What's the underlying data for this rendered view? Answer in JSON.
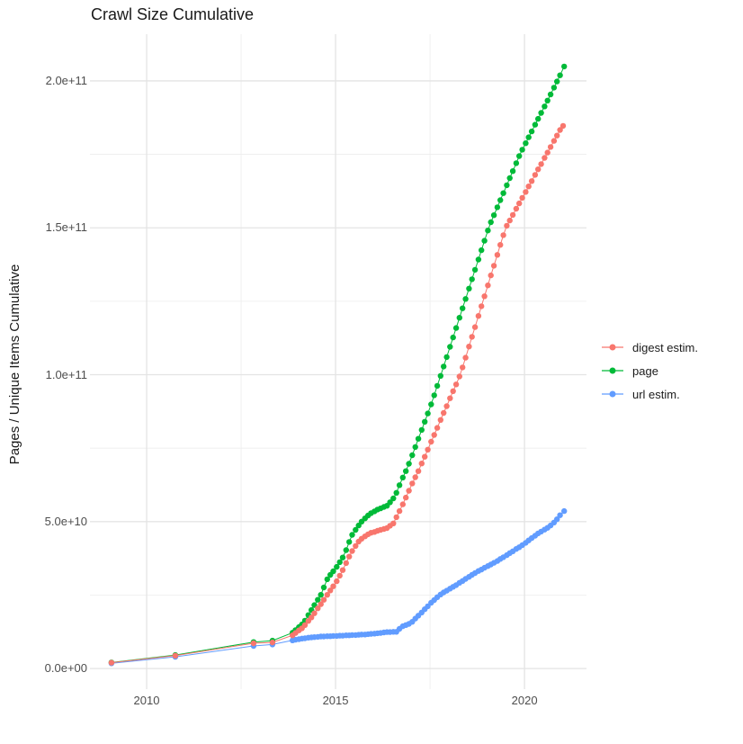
{
  "chart_data": {
    "type": "line",
    "title": "Crawl Size Cumulative",
    "xlabel": "",
    "ylabel": "Pages / Unique Items Cumulative",
    "legend_position": "right",
    "background_color": "#FFFFFF",
    "grid_major_color": "#E4E4E4",
    "grid_minor_color": "#EDEDED",
    "tick_text_color": "#4D4D4D",
    "value_unit": "1e9 items",
    "xlim": [
      2008.5,
      2021.64
    ],
    "ylim_e9": [
      -7,
      215.9
    ],
    "x_ticks": [
      {
        "label": "2010",
        "value": 2010
      },
      {
        "label": "2015",
        "value": 2015
      },
      {
        "label": "2020",
        "value": 2020
      }
    ],
    "y_ticks": [
      {
        "label": "0.0e+00",
        "value": 0
      },
      {
        "label": "5.0e+10",
        "value": 50
      },
      {
        "label": "1.0e+11",
        "value": 100
      },
      {
        "label": "1.5e+11",
        "value": 150
      },
      {
        "label": "2.0e+11",
        "value": 200
      }
    ],
    "x_minor": [
      2012.5,
      2017.5
    ],
    "y_minor": [
      25,
      75,
      125,
      175
    ],
    "series": [
      {
        "name": "digest estim.",
        "color": "#F8766D",
        "points": [
          [
            2009.07,
            2.0
          ],
          [
            2010.76,
            4.4
          ],
          [
            2012.83,
            8.6
          ],
          [
            2013.33,
            8.9
          ],
          [
            2013.86,
            11.3
          ],
          [
            2013.94,
            12.1
          ],
          [
            2014.03,
            13.0
          ],
          [
            2014.11,
            13.7
          ],
          [
            2014.19,
            14.8
          ],
          [
            2014.28,
            16.2
          ],
          [
            2014.36,
            17.4
          ],
          [
            2014.44,
            18.8
          ],
          [
            2014.53,
            20.5
          ],
          [
            2014.61,
            21.9
          ],
          [
            2014.69,
            23.4
          ],
          [
            2014.78,
            25.1
          ],
          [
            2014.86,
            26.6
          ],
          [
            2014.94,
            28.0
          ],
          [
            2015.03,
            29.7
          ],
          [
            2015.11,
            31.6
          ],
          [
            2015.19,
            33.5
          ],
          [
            2015.28,
            35.9
          ],
          [
            2015.36,
            38.1
          ],
          [
            2015.44,
            40.0
          ],
          [
            2015.53,
            41.7
          ],
          [
            2015.61,
            43.2
          ],
          [
            2015.69,
            44.2
          ],
          [
            2015.78,
            45.0
          ],
          [
            2015.86,
            45.7
          ],
          [
            2015.94,
            46.2
          ],
          [
            2016.03,
            46.5
          ],
          [
            2016.11,
            46.9
          ],
          [
            2016.19,
            47.2
          ],
          [
            2016.28,
            47.5
          ],
          [
            2016.36,
            47.8
          ],
          [
            2016.44,
            48.6
          ],
          [
            2016.53,
            49.4
          ],
          [
            2016.61,
            51.5
          ],
          [
            2016.69,
            53.6
          ],
          [
            2016.78,
            55.9
          ],
          [
            2016.86,
            58.2
          ],
          [
            2016.94,
            60.5
          ],
          [
            2017.03,
            63.0
          ],
          [
            2017.11,
            65.1
          ],
          [
            2017.19,
            67.2
          ],
          [
            2017.28,
            69.8
          ],
          [
            2017.36,
            72.1
          ],
          [
            2017.44,
            74.5
          ],
          [
            2017.53,
            77.2
          ],
          [
            2017.61,
            79.5
          ],
          [
            2017.69,
            81.9
          ],
          [
            2017.78,
            84.6
          ],
          [
            2017.86,
            87.0
          ],
          [
            2017.94,
            89.3
          ],
          [
            2018.03,
            92.0
          ],
          [
            2018.11,
            94.4
          ],
          [
            2018.19,
            96.7
          ],
          [
            2018.28,
            99.4
          ],
          [
            2018.36,
            102.5
          ],
          [
            2018.44,
            105.8
          ],
          [
            2018.53,
            109.6
          ],
          [
            2018.61,
            112.9
          ],
          [
            2018.69,
            116.2
          ],
          [
            2018.78,
            120.0
          ],
          [
            2018.86,
            123.3
          ],
          [
            2018.94,
            126.7
          ],
          [
            2019.03,
            130.4
          ],
          [
            2019.11,
            133.8
          ],
          [
            2019.19,
            137.1
          ],
          [
            2019.28,
            140.8
          ],
          [
            2019.36,
            144.2
          ],
          [
            2019.44,
            147.5
          ],
          [
            2019.53,
            150.7
          ],
          [
            2019.61,
            152.5
          ],
          [
            2019.69,
            154.4
          ],
          [
            2019.78,
            156.5
          ],
          [
            2019.86,
            158.3
          ],
          [
            2019.94,
            160.2
          ],
          [
            2020.03,
            162.2
          ],
          [
            2020.11,
            164.1
          ],
          [
            2020.19,
            165.9
          ],
          [
            2020.28,
            168.0
          ],
          [
            2020.36,
            169.9
          ],
          [
            2020.44,
            171.7
          ],
          [
            2020.53,
            173.8
          ],
          [
            2020.61,
            175.6
          ],
          [
            2020.69,
            177.5
          ],
          [
            2020.78,
            179.6
          ],
          [
            2020.86,
            181.4
          ],
          [
            2020.94,
            183.3
          ],
          [
            2021.02,
            184.7
          ]
        ]
      },
      {
        "name": "page",
        "color": "#00BA38",
        "points": [
          [
            2009.07,
            2.1
          ],
          [
            2010.76,
            4.6
          ],
          [
            2012.83,
            9.0
          ],
          [
            2013.33,
            9.5
          ],
          [
            2013.86,
            12.2
          ],
          [
            2013.94,
            13.1
          ],
          [
            2014.03,
            14.1
          ],
          [
            2014.11,
            15.0
          ],
          [
            2014.19,
            16.3
          ],
          [
            2014.28,
            18.2
          ],
          [
            2014.36,
            19.9
          ],
          [
            2014.44,
            21.6
          ],
          [
            2014.53,
            23.4
          ],
          [
            2014.61,
            25.1
          ],
          [
            2014.69,
            27.6
          ],
          [
            2014.78,
            30.4
          ],
          [
            2014.86,
            31.9
          ],
          [
            2014.94,
            33.1
          ],
          [
            2015.03,
            34.6
          ],
          [
            2015.11,
            36.2
          ],
          [
            2015.19,
            37.8
          ],
          [
            2015.28,
            40.3
          ],
          [
            2015.36,
            43.1
          ],
          [
            2015.44,
            45.5
          ],
          [
            2015.53,
            47.2
          ],
          [
            2015.61,
            48.7
          ],
          [
            2015.69,
            50.0
          ],
          [
            2015.78,
            51.1
          ],
          [
            2015.86,
            52.1
          ],
          [
            2015.94,
            52.9
          ],
          [
            2016.03,
            53.5
          ],
          [
            2016.11,
            54.1
          ],
          [
            2016.19,
            54.5
          ],
          [
            2016.28,
            55.0
          ],
          [
            2016.36,
            55.4
          ],
          [
            2016.44,
            56.6
          ],
          [
            2016.53,
            57.9
          ],
          [
            2016.61,
            59.8
          ],
          [
            2016.69,
            62.4
          ],
          [
            2016.78,
            65.0
          ],
          [
            2016.86,
            67.2
          ],
          [
            2016.94,
            69.7
          ],
          [
            2017.03,
            72.6
          ],
          [
            2017.11,
            75.4
          ],
          [
            2017.19,
            78.2
          ],
          [
            2017.28,
            81.2
          ],
          [
            2017.36,
            84.0
          ],
          [
            2017.44,
            86.8
          ],
          [
            2017.53,
            89.9
          ],
          [
            2017.61,
            93.0
          ],
          [
            2017.69,
            96.2
          ],
          [
            2017.78,
            99.6
          ],
          [
            2017.86,
            102.8
          ],
          [
            2017.94,
            106.0
          ],
          [
            2018.03,
            109.5
          ],
          [
            2018.11,
            112.7
          ],
          [
            2018.19,
            115.9
          ],
          [
            2018.28,
            119.4
          ],
          [
            2018.36,
            122.6
          ],
          [
            2018.44,
            125.8
          ],
          [
            2018.53,
            129.3
          ],
          [
            2018.61,
            132.5
          ],
          [
            2018.69,
            135.7
          ],
          [
            2018.78,
            139.2
          ],
          [
            2018.86,
            142.4
          ],
          [
            2018.94,
            145.6
          ],
          [
            2019.03,
            149.1
          ],
          [
            2019.11,
            151.9
          ],
          [
            2019.19,
            154.3
          ],
          [
            2019.28,
            157.0
          ],
          [
            2019.36,
            159.4
          ],
          [
            2019.44,
            161.8
          ],
          [
            2019.53,
            164.5
          ],
          [
            2019.61,
            166.9
          ],
          [
            2019.69,
            169.3
          ],
          [
            2019.78,
            172.0
          ],
          [
            2019.86,
            174.4
          ],
          [
            2019.94,
            176.6
          ],
          [
            2020.03,
            178.8
          ],
          [
            2020.11,
            180.8
          ],
          [
            2020.19,
            182.8
          ],
          [
            2020.28,
            185.1
          ],
          [
            2020.36,
            187.1
          ],
          [
            2020.44,
            189.1
          ],
          [
            2020.53,
            191.3
          ],
          [
            2020.61,
            193.3
          ],
          [
            2020.69,
            195.4
          ],
          [
            2020.78,
            197.7
          ],
          [
            2020.86,
            199.8
          ],
          [
            2020.94,
            201.9
          ],
          [
            2021.05,
            204.9
          ]
        ]
      },
      {
        "name": "url estim.",
        "color": "#619CFF",
        "points": [
          [
            2009.07,
            1.8
          ],
          [
            2010.76,
            4.0
          ],
          [
            2012.83,
            7.7
          ],
          [
            2013.33,
            8.2
          ],
          [
            2013.86,
            9.6
          ],
          [
            2013.94,
            9.8
          ],
          [
            2014.03,
            10.0
          ],
          [
            2014.11,
            10.2
          ],
          [
            2014.19,
            10.3
          ],
          [
            2014.28,
            10.5
          ],
          [
            2014.36,
            10.6
          ],
          [
            2014.44,
            10.7
          ],
          [
            2014.53,
            10.8
          ],
          [
            2014.61,
            10.9
          ],
          [
            2014.69,
            10.9
          ],
          [
            2014.78,
            11.0
          ],
          [
            2014.86,
            11.0
          ],
          [
            2014.94,
            11.1
          ],
          [
            2015.03,
            11.1
          ],
          [
            2015.11,
            11.2
          ],
          [
            2015.19,
            11.2
          ],
          [
            2015.28,
            11.3
          ],
          [
            2015.36,
            11.3
          ],
          [
            2015.44,
            11.4
          ],
          [
            2015.53,
            11.4
          ],
          [
            2015.61,
            11.5
          ],
          [
            2015.69,
            11.6
          ],
          [
            2015.78,
            11.6
          ],
          [
            2015.86,
            11.7
          ],
          [
            2015.94,
            11.8
          ],
          [
            2016.03,
            11.9
          ],
          [
            2016.11,
            12.0
          ],
          [
            2016.19,
            12.1
          ],
          [
            2016.28,
            12.3
          ],
          [
            2016.36,
            12.4
          ],
          [
            2016.44,
            12.4
          ],
          [
            2016.53,
            12.5
          ],
          [
            2016.61,
            12.5
          ],
          [
            2016.69,
            13.5
          ],
          [
            2016.78,
            14.4
          ],
          [
            2016.86,
            14.8
          ],
          [
            2016.94,
            15.2
          ],
          [
            2017.03,
            15.9
          ],
          [
            2017.11,
            17.0
          ],
          [
            2017.19,
            18.0
          ],
          [
            2017.28,
            19.1
          ],
          [
            2017.36,
            20.2
          ],
          [
            2017.44,
            21.2
          ],
          [
            2017.53,
            22.4
          ],
          [
            2017.61,
            23.3
          ],
          [
            2017.69,
            24.3
          ],
          [
            2017.78,
            25.2
          ],
          [
            2017.86,
            25.9
          ],
          [
            2017.94,
            26.5
          ],
          [
            2018.03,
            27.2
          ],
          [
            2018.11,
            27.8
          ],
          [
            2018.19,
            28.4
          ],
          [
            2018.28,
            29.2
          ],
          [
            2018.36,
            29.8
          ],
          [
            2018.44,
            30.5
          ],
          [
            2018.53,
            31.2
          ],
          [
            2018.61,
            31.9
          ],
          [
            2018.69,
            32.5
          ],
          [
            2018.78,
            33.2
          ],
          [
            2018.86,
            33.7
          ],
          [
            2018.94,
            34.3
          ],
          [
            2019.03,
            34.9
          ],
          [
            2019.11,
            35.4
          ],
          [
            2019.19,
            36.0
          ],
          [
            2019.28,
            36.6
          ],
          [
            2019.36,
            37.3
          ],
          [
            2019.44,
            37.9
          ],
          [
            2019.53,
            38.6
          ],
          [
            2019.61,
            39.3
          ],
          [
            2019.69,
            39.9
          ],
          [
            2019.78,
            40.7
          ],
          [
            2019.86,
            41.3
          ],
          [
            2019.94,
            42.0
          ],
          [
            2020.03,
            42.8
          ],
          [
            2020.11,
            43.6
          ],
          [
            2020.19,
            44.4
          ],
          [
            2020.28,
            45.2
          ],
          [
            2020.36,
            46.0
          ],
          [
            2020.44,
            46.6
          ],
          [
            2020.53,
            47.3
          ],
          [
            2020.61,
            47.9
          ],
          [
            2020.69,
            48.7
          ],
          [
            2020.78,
            49.7
          ],
          [
            2020.86,
            50.8
          ],
          [
            2020.94,
            52.2
          ],
          [
            2021.05,
            53.6
          ]
        ]
      }
    ]
  }
}
